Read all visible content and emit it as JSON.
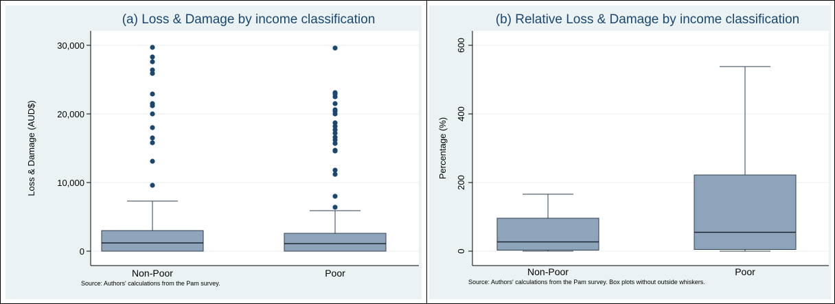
{
  "chart_data": [
    {
      "type": "box",
      "title": "(a) Loss & Damage by income classification",
      "ylabel": "Loss & Damage (AUD$)",
      "xlabel": "",
      "ylim": [
        0,
        30000
      ],
      "yticks": [
        0,
        10000,
        20000,
        30000
      ],
      "ytick_labels": [
        "0",
        "10,000",
        "20,000",
        "30,000"
      ],
      "grid": true,
      "categories": [
        "Non-Poor",
        "Poor"
      ],
      "boxes": [
        {
          "category": "Non-Poor",
          "min": 0,
          "q1": 0,
          "median": 1200,
          "q3": 3000,
          "max": 7300,
          "outliers": [
            9600,
            13100,
            15800,
            16500,
            18000,
            20000,
            21200,
            21500,
            22900,
            25900,
            26400,
            27600,
            28300,
            29700
          ]
        },
        {
          "category": "Poor",
          "min": 0,
          "q1": 0,
          "median": 1100,
          "q3": 2600,
          "max": 5900,
          "outliers": [
            6400,
            8000,
            11200,
            11800,
            14600,
            14700,
            15700,
            16200,
            16600,
            17200,
            17700,
            18200,
            18700,
            20000,
            20400,
            20600,
            21500,
            22500,
            22900,
            23100,
            29600
          ]
        }
      ],
      "source": "Source: Authors' calculations from the Pam survey."
    },
    {
      "type": "box",
      "title": "(b) Relative Loss & Damage by income classification",
      "ylabel": "Percentage (%)",
      "xlabel": "",
      "ylim": [
        0,
        600
      ],
      "yticks": [
        0,
        200,
        400,
        600
      ],
      "ytick_labels": [
        "0",
        "200",
        "400",
        "600"
      ],
      "grid": true,
      "categories": [
        "Non-Poor",
        "Poor"
      ],
      "boxes": [
        {
          "category": "Non-Poor",
          "min": 0,
          "q1": 3,
          "median": 27,
          "q3": 96,
          "max": 166,
          "outliers": []
        },
        {
          "category": "Poor",
          "min": 0,
          "q1": 5,
          "median": 55,
          "q3": 222,
          "max": 538,
          "outliers": []
        }
      ],
      "source": "Source: Authors' calculations from the Pam survey. Box plots without outside whiskers."
    }
  ],
  "colors": {
    "title": "#1a476f",
    "box_fill": "#8ea4ba",
    "box_stroke": "#2e3f4f",
    "outlier": "#1a476f",
    "plot_bg": "#ffffff",
    "grid": "#e8eef2",
    "panel_bg": "#eaf2f3"
  }
}
